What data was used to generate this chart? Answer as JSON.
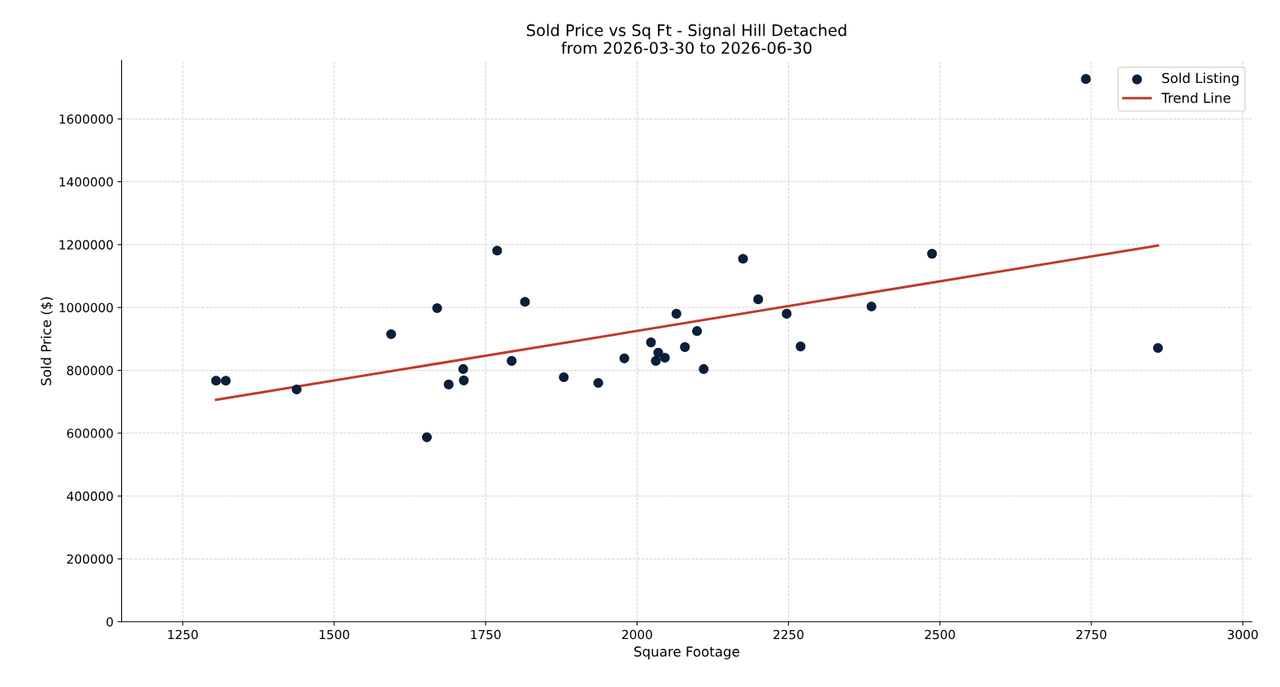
{
  "chart_data": {
    "type": "scatter",
    "title": "Sold Price vs Sq Ft - Signal Hill Detached\nfrom 2026-03-30 to 2026-06-30",
    "xlabel": "Square Footage",
    "ylabel": "Sold Price ($)",
    "series": [
      {
        "name": "Sold Listing",
        "marker": "circle",
        "color": "#0b1f3a",
        "x": [
          1305,
          1321,
          1438,
          1594,
          1653,
          1670,
          1689,
          1713,
          1714,
          1769,
          1793,
          1815,
          1879,
          1936,
          1979,
          2023,
          2031,
          2035,
          2046,
          2065,
          2079,
          2099,
          2110,
          2175,
          2200,
          2247,
          2270,
          2387,
          2487,
          2741,
          2860
        ],
        "values": [
          767000,
          767000,
          739000,
          915000,
          587000,
          998000,
          755000,
          804000,
          768000,
          1181000,
          830000,
          1018000,
          778000,
          760000,
          838000,
          889000,
          830000,
          856000,
          840000,
          980000,
          874000,
          925000,
          804000,
          1155000,
          1026000,
          980000,
          876000,
          1003000,
          1171000,
          1727000,
          871000
        ]
      },
      {
        "name": "Trend Line",
        "type": "line",
        "color": "#c0392b",
        "x": [
          1305,
          2860
        ],
        "values": [
          706000,
          1197000
        ]
      }
    ],
    "xlim": [
      1149,
      3015
    ],
    "xticks": [
      1250,
      1500,
      1750,
      2000,
      2250,
      2500,
      2750,
      3000
    ],
    "ylim": [
      0,
      1786000
    ],
    "yticks": [
      0,
      200000,
      400000,
      600000,
      800000,
      1000000,
      1200000,
      1400000,
      1600000
    ],
    "grid": true,
    "legend": "top right",
    "line_style": "solid"
  }
}
